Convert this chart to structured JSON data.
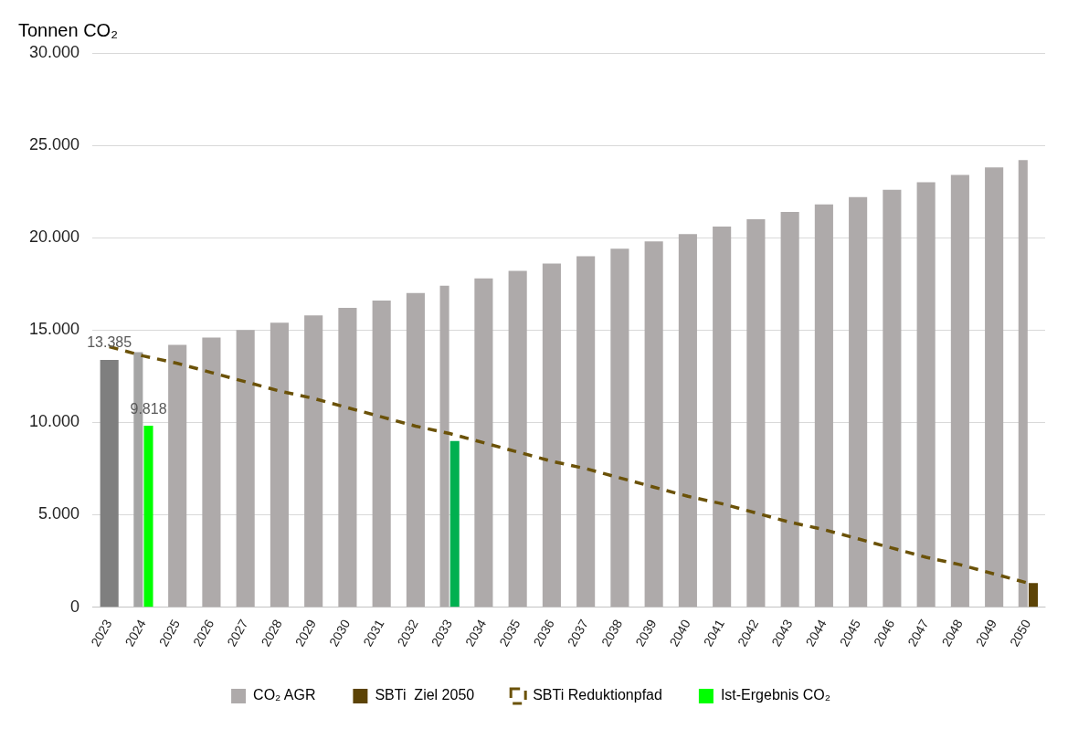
{
  "chart_data": {
    "type": "bar",
    "ylabel": "Tonnen CO₂",
    "categories": [
      "2023",
      "2024",
      "2025",
      "2026",
      "2027",
      "2028",
      "2029",
      "2030",
      "2031",
      "2032",
      "2033",
      "2034",
      "2035",
      "2036",
      "2037",
      "2038",
      "2039",
      "2040",
      "2041",
      "2042",
      "2043",
      "2044",
      "2045",
      "2046",
      "2047",
      "2048",
      "2049",
      "2050"
    ],
    "series": [
      {
        "name": "CO₂ AGR",
        "color": "#aeaaaa",
        "colors": [
          "#7f7f7f",
          "#a5a5a5",
          "#aeaaaa",
          "#aeaaaa",
          "#aeaaaa",
          "#aeaaaa",
          "#aeaaaa",
          "#aeaaaa",
          "#aeaaaa",
          "#aeaaaa",
          "#aeaaaa",
          "#aeaaaa",
          "#aeaaaa",
          "#aeaaaa",
          "#aeaaaa",
          "#aeaaaa",
          "#aeaaaa",
          "#aeaaaa",
          "#aeaaaa",
          "#aeaaaa",
          "#aeaaaa",
          "#aeaaaa",
          "#aeaaaa",
          "#aeaaaa",
          "#aeaaaa",
          "#aeaaaa",
          "#aeaaaa",
          "#aeaaaa"
        ],
        "values": [
          13385,
          13800,
          14200,
          14600,
          15000,
          15400,
          15800,
          16200,
          16600,
          17000,
          17400,
          17800,
          18200,
          18600,
          19000,
          19400,
          19800,
          20200,
          20600,
          21000,
          21400,
          21800,
          22200,
          22600,
          23000,
          23400,
          23800,
          24200
        ],
        "value_labels": [
          "13.385",
          null,
          null,
          null,
          null,
          null,
          null,
          null,
          null,
          null,
          null,
          null,
          null,
          null,
          null,
          null,
          null,
          null,
          null,
          null,
          null,
          null,
          null,
          null,
          null,
          null,
          null,
          null
        ]
      },
      {
        "name": "SBTi  Ziel 2050",
        "color": "#5c4306",
        "values": [
          null,
          null,
          null,
          null,
          null,
          null,
          null,
          null,
          null,
          null,
          null,
          null,
          null,
          null,
          null,
          null,
          null,
          null,
          null,
          null,
          null,
          null,
          null,
          null,
          null,
          null,
          null,
          1300
        ]
      },
      {
        "name": "SBTi Reduktionpfad",
        "type": "line",
        "color": "#6b5209",
        "line_style": "dashed",
        "marker": "none",
        "values": [
          14100,
          13600,
          13200,
          12700,
          12200,
          11700,
          11300,
          10800,
          10300,
          9800,
          9400,
          8900,
          8400,
          7900,
          7500,
          7000,
          6500,
          6000,
          5600,
          5100,
          4600,
          4200,
          3700,
          3200,
          2700,
          2300,
          1800,
          1300
        ]
      },
      {
        "name": "Ist-Ergebnis CO₂",
        "color": "#00ff00",
        "colors": [
          null,
          "#00ff00",
          null,
          null,
          null,
          null,
          null,
          null,
          null,
          null,
          "#00b050",
          null,
          null,
          null,
          null,
          null,
          null,
          null,
          null,
          null,
          null,
          null,
          null,
          null,
          null,
          null,
          null,
          null
        ],
        "values": [
          null,
          9818,
          null,
          null,
          null,
          null,
          null,
          null,
          null,
          null,
          9000,
          null,
          null,
          null,
          null,
          null,
          null,
          null,
          null,
          null,
          null,
          null,
          null,
          null,
          null,
          null,
          null,
          null
        ],
        "value_labels": [
          null,
          "9.818",
          null,
          null,
          null,
          null,
          null,
          null,
          null,
          null,
          null,
          null,
          null,
          null,
          null,
          null,
          null,
          null,
          null,
          null,
          null,
          null,
          null,
          null,
          null,
          null,
          null,
          null
        ]
      }
    ],
    "ylim": [
      0,
      30000
    ],
    "yticks": [
      0,
      {
        "value": 5000,
        "label": "5.000"
      },
      {
        "value": 10000,
        "label": "10.000"
      },
      {
        "value": 15000,
        "label": "15.000"
      },
      {
        "value": 20000,
        "label": "20.000"
      },
      {
        "value": 25000,
        "label": "25.000"
      },
      {
        "value": 30000,
        "label": "30.000"
      }
    ],
    "grid": "y",
    "legend": "bottom"
  }
}
